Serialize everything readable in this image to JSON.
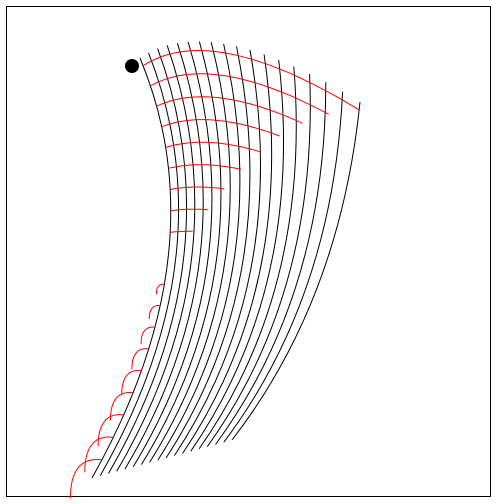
{
  "diagram": {
    "kind": "curvilinear coordinate grid",
    "families": [
      {
        "role": "coordinate-curves",
        "color": "#000000",
        "count": 18
      },
      {
        "role": "cross-curves",
        "color": "#ff0000",
        "count": 18
      }
    ],
    "marker": {
      "shape": "filled-circle",
      "color": "#000000"
    }
  }
}
